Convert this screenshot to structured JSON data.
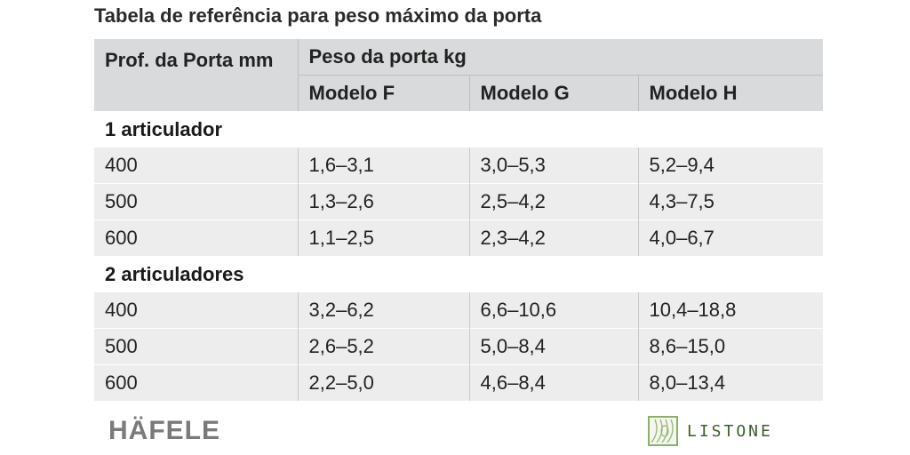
{
  "title": "Tabela de referência para peso máximo da porta",
  "header": {
    "col1": "Prof. da Porta mm",
    "group": "Peso da porta kg",
    "models": [
      "Modelo F",
      "Modelo G",
      "Modelo H"
    ]
  },
  "sections": [
    {
      "label": "1 articulador",
      "rows": [
        {
          "depth": "400",
          "f": "1,6–3,1",
          "g": "3,0–5,3",
          "h": "5,2–9,4"
        },
        {
          "depth": "500",
          "f": "1,3–2,6",
          "g": "2,5–4,2",
          "h": "4,3–7,5"
        },
        {
          "depth": "600",
          "f": "1,1–2,5",
          "g": "2,3–4,2",
          "h": "4,0–6,7"
        }
      ]
    },
    {
      "label": "2 articuladores",
      "rows": [
        {
          "depth": "400",
          "f": "3,2–6,2",
          "g": "6,6–10,6",
          "h": "10,4–18,8"
        },
        {
          "depth": "500",
          "f": "2,6–5,2",
          "g": "5,0–8,4",
          "h": "8,6–15,0"
        },
        {
          "depth": "600",
          "f": "2,2–5,0",
          "g": "4,6–8,4",
          "h": "8,0–13,4"
        }
      ]
    }
  ],
  "logos": {
    "hafele": "HÄFELE",
    "listone": "LISTONE",
    "listone_icon": "wood-grain-icon",
    "listone_color": "#3d5e2a",
    "hafele_color": "#7a7a7a"
  }
}
